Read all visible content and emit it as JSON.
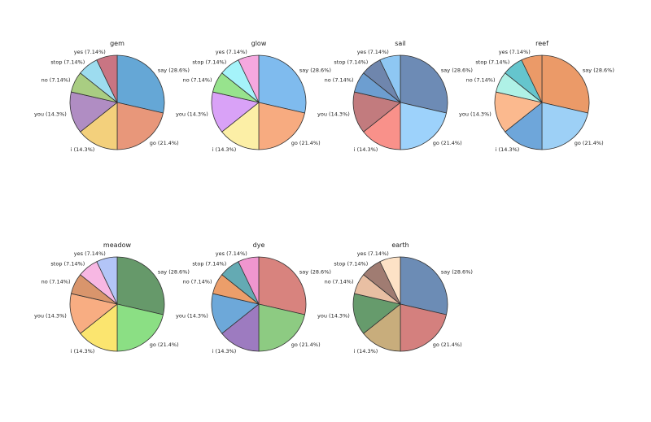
{
  "chart_data": [
    {
      "type": "pie",
      "title": "gem",
      "labels": [
        "say (28.6%)",
        "go (21.4%)",
        "i (14.3%)",
        "you (14.3%)",
        "no (7.14%)",
        "stop (7.14%)",
        "yes (7.14%)"
      ],
      "values": [
        28.6,
        21.4,
        14.3,
        14.3,
        7.14,
        7.14,
        7.14
      ],
      "colors": [
        "#65a7d6",
        "#e8977a",
        "#f3d07c",
        "#b08dc3",
        "#a9cd82",
        "#9ddcef",
        "#c97583"
      ]
    },
    {
      "type": "pie",
      "title": "glow",
      "labels": [
        "say (28.6%)",
        "go (21.4%)",
        "i (14.3%)",
        "you (14.3%)",
        "no (7.14%)",
        "stop (7.14%)",
        "yes (7.14%)"
      ],
      "values": [
        28.6,
        21.4,
        14.3,
        14.3,
        7.14,
        7.14,
        7.14
      ],
      "colors": [
        "#7fbbee",
        "#f7ab80",
        "#fcefa6",
        "#d9a2f7",
        "#97e38d",
        "#a5f3fa",
        "#f5a8df"
      ]
    },
    {
      "type": "pie",
      "title": "sail",
      "labels": [
        "say (28.6%)",
        "go (21.4%)",
        "i (14.3%)",
        "you (14.3%)",
        "no (7.14%)",
        "stop (7.14%)",
        "yes (7.14%)"
      ],
      "values": [
        28.6,
        21.4,
        14.3,
        14.3,
        7.14,
        7.14,
        7.14
      ],
      "colors": [
        "#6d8bb5",
        "#9dd2fb",
        "#f9918a",
        "#c27b7e",
        "#6d9ed0",
        "#6f86ad",
        "#8ec7f3"
      ]
    },
    {
      "type": "pie",
      "title": "reef",
      "labels": [
        "say (28.6%)",
        "go (21.4%)",
        "i (14.3%)",
        "you (14.3%)",
        "no (7.14%)",
        "stop (7.14%)",
        "yes (7.14%)"
      ],
      "values": [
        28.6,
        21.4,
        14.3,
        14.3,
        7.14,
        7.14,
        7.14
      ],
      "colors": [
        "#eb9a68",
        "#9dd0f6",
        "#6ea6da",
        "#fbb98e",
        "#aff1e6",
        "#65c5cd",
        "#eb9a68"
      ]
    },
    {
      "type": "pie",
      "title": "meadow",
      "labels": [
        "say (28.6%)",
        "go (21.4%)",
        "i (14.3%)",
        "you (14.3%)",
        "no (7.14%)",
        "stop (7.14%)",
        "yes (7.14%)"
      ],
      "values": [
        28.6,
        21.4,
        14.3,
        14.3,
        7.14,
        7.14,
        7.14
      ],
      "colors": [
        "#66996a",
        "#8bdf84",
        "#fbe56f",
        "#f8ad82",
        "#d9956c",
        "#f7b7e3",
        "#b3c5f7"
      ]
    },
    {
      "type": "pie",
      "title": "dye",
      "labels": [
        "say (28.6%)",
        "go (21.4%)",
        "i (14.3%)",
        "you (14.3%)",
        "no (7.14%)",
        "stop (7.14%)",
        "yes (7.14%)"
      ],
      "values": [
        28.6,
        21.4,
        14.3,
        14.3,
        7.14,
        7.14,
        7.14
      ],
      "colors": [
        "#d8837e",
        "#8dcb82",
        "#9d7bc0",
        "#6da8d9",
        "#ec9e6a",
        "#64aab3",
        "#ef96cf"
      ]
    },
    {
      "type": "pie",
      "title": "earth",
      "labels": [
        "say (28.6%)",
        "go (21.4%)",
        "i (14.3%)",
        "you (14.3%)",
        "no (7.14%)",
        "stop (7.14%)",
        "yes (7.14%)"
      ],
      "values": [
        28.6,
        21.4,
        14.3,
        14.3,
        7.14,
        7.14,
        7.14
      ],
      "colors": [
        "#6c8cb5",
        "#d4807e",
        "#c8ad7c",
        "#669b6c",
        "#e9bfa3",
        "#a07c72",
        "#fde2c6"
      ]
    }
  ]
}
